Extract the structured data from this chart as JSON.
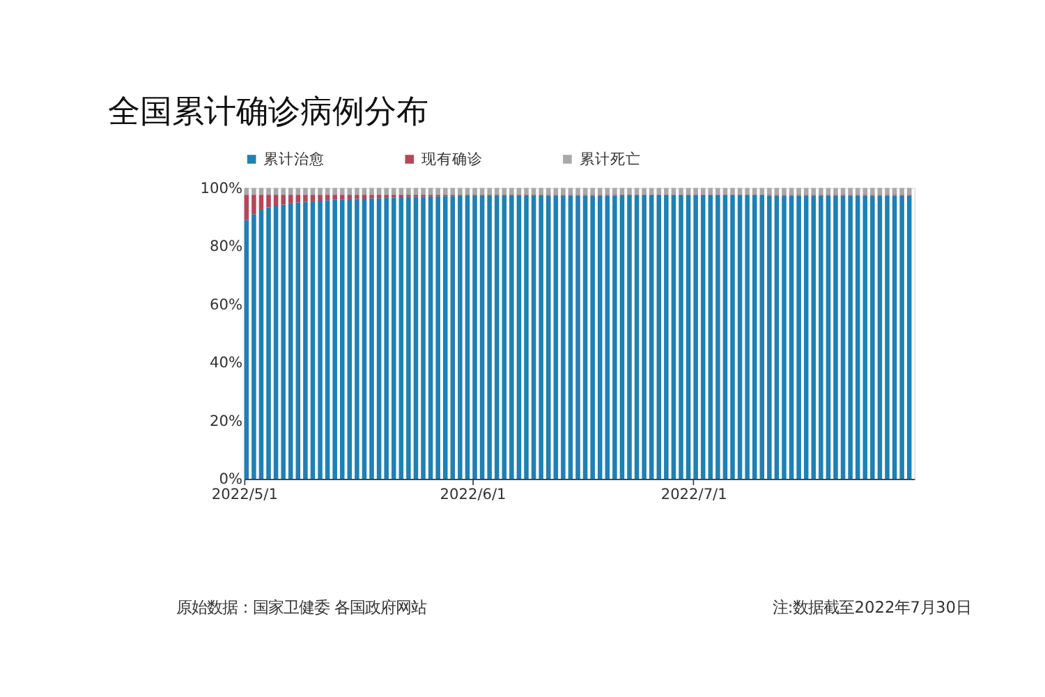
{
  "chart_data": {
    "type": "bar",
    "stacked": true,
    "title": "全国累计确诊病例分布",
    "x": [
      "2022-05-01",
      "2022-05-02",
      "2022-05-03",
      "2022-05-04",
      "2022-05-05",
      "2022-05-06",
      "2022-05-07",
      "2022-05-08",
      "2022-05-09",
      "2022-05-10",
      "2022-05-11",
      "2022-05-12",
      "2022-05-13",
      "2022-05-14",
      "2022-05-15",
      "2022-05-16",
      "2022-05-17",
      "2022-05-18",
      "2022-05-19",
      "2022-05-20",
      "2022-05-21",
      "2022-05-22",
      "2022-05-23",
      "2022-05-24",
      "2022-05-25",
      "2022-05-26",
      "2022-05-27",
      "2022-05-28",
      "2022-05-29",
      "2022-05-30",
      "2022-05-31",
      "2022-06-01",
      "2022-06-02",
      "2022-06-03",
      "2022-06-04",
      "2022-06-05",
      "2022-06-06",
      "2022-06-07",
      "2022-06-08",
      "2022-06-09",
      "2022-06-10",
      "2022-06-11",
      "2022-06-12",
      "2022-06-13",
      "2022-06-14",
      "2022-06-15",
      "2022-06-16",
      "2022-06-17",
      "2022-06-18",
      "2022-06-19",
      "2022-06-20",
      "2022-06-21",
      "2022-06-22",
      "2022-06-23",
      "2022-06-24",
      "2022-06-25",
      "2022-06-26",
      "2022-06-27",
      "2022-06-28",
      "2022-06-29",
      "2022-06-30",
      "2022-07-01",
      "2022-07-02",
      "2022-07-03",
      "2022-07-04",
      "2022-07-05",
      "2022-07-06",
      "2022-07-07",
      "2022-07-08",
      "2022-07-09",
      "2022-07-10",
      "2022-07-11",
      "2022-07-12",
      "2022-07-13",
      "2022-07-14",
      "2022-07-15",
      "2022-07-16",
      "2022-07-17",
      "2022-07-18",
      "2022-07-19",
      "2022-07-20",
      "2022-07-21",
      "2022-07-22",
      "2022-07-23",
      "2022-07-24",
      "2022-07-25",
      "2022-07-26",
      "2022-07-27",
      "2022-07-28",
      "2022-07-29",
      "2022-07-30"
    ],
    "series": [
      {
        "name": "累计治愈",
        "color": "#1f80b4",
        "values": [
          89.0,
          91.0,
          92.5,
          93.3,
          93.9,
          94.3,
          94.7,
          95.0,
          95.2,
          95.4,
          95.6,
          95.8,
          95.9,
          96.0,
          96.1,
          96.2,
          96.3,
          96.4,
          96.5,
          96.6,
          96.7,
          96.8,
          96.9,
          97.0,
          97.0,
          97.1,
          97.1,
          97.2,
          97.2,
          97.3,
          97.3,
          97.3,
          97.3,
          97.3,
          97.3,
          97.3,
          97.3,
          97.3,
          97.3,
          97.3,
          97.3,
          97.4,
          97.4,
          97.4,
          97.4,
          97.4,
          97.4,
          97.4,
          97.4,
          97.4,
          97.4,
          97.5,
          97.5,
          97.5,
          97.5,
          97.5,
          97.5,
          97.5,
          97.5,
          97.5,
          97.5,
          97.5,
          97.5,
          97.5,
          97.5,
          97.5,
          97.5,
          97.5,
          97.5,
          97.5,
          97.5,
          97.4,
          97.4,
          97.4,
          97.4,
          97.4,
          97.4,
          97.4,
          97.4,
          97.4,
          97.4,
          97.4,
          97.4,
          97.4,
          97.4,
          97.4,
          97.4,
          97.4,
          97.4,
          97.4,
          97.4
        ]
      },
      {
        "name": "现有确诊",
        "color": "#b4475a",
        "values": [
          8.7,
          6.7,
          5.2,
          4.4,
          3.8,
          3.4,
          3.0,
          2.7,
          2.5,
          2.3,
          2.1,
          1.9,
          1.8,
          1.7,
          1.6,
          1.5,
          1.4,
          1.3,
          1.2,
          1.1,
          1.0,
          0.9,
          0.8,
          0.7,
          0.7,
          0.6,
          0.6,
          0.5,
          0.5,
          0.4,
          0.4,
          0.4,
          0.4,
          0.4,
          0.4,
          0.4,
          0.4,
          0.4,
          0.4,
          0.4,
          0.4,
          0.3,
          0.3,
          0.3,
          0.3,
          0.3,
          0.3,
          0.3,
          0.3,
          0.3,
          0.3,
          0.2,
          0.2,
          0.2,
          0.2,
          0.2,
          0.2,
          0.2,
          0.2,
          0.2,
          0.2,
          0.2,
          0.2,
          0.2,
          0.2,
          0.2,
          0.2,
          0.2,
          0.2,
          0.2,
          0.2,
          0.3,
          0.3,
          0.3,
          0.3,
          0.3,
          0.3,
          0.3,
          0.3,
          0.3,
          0.3,
          0.3,
          0.3,
          0.3,
          0.3,
          0.3,
          0.3,
          0.3,
          0.3,
          0.3,
          0.3
        ]
      },
      {
        "name": "累计死亡",
        "color": "#a8a8a8",
        "values": [
          2.3,
          2.3,
          2.3,
          2.3,
          2.3,
          2.3,
          2.3,
          2.3,
          2.3,
          2.3,
          2.3,
          2.3,
          2.3,
          2.3,
          2.3,
          2.3,
          2.3,
          2.3,
          2.3,
          2.3,
          2.3,
          2.3,
          2.3,
          2.3,
          2.3,
          2.3,
          2.3,
          2.3,
          2.3,
          2.3,
          2.3,
          2.3,
          2.3,
          2.3,
          2.3,
          2.3,
          2.3,
          2.3,
          2.3,
          2.3,
          2.3,
          2.3,
          2.3,
          2.3,
          2.3,
          2.3,
          2.3,
          2.3,
          2.3,
          2.3,
          2.3,
          2.3,
          2.3,
          2.3,
          2.3,
          2.3,
          2.3,
          2.3,
          2.3,
          2.3,
          2.3,
          2.3,
          2.3,
          2.3,
          2.3,
          2.3,
          2.3,
          2.3,
          2.3,
          2.3,
          2.3,
          2.3,
          2.3,
          2.3,
          2.3,
          2.3,
          2.3,
          2.3,
          2.3,
          2.3,
          2.3,
          2.3,
          2.3,
          2.3,
          2.3,
          2.3,
          2.3,
          2.3,
          2.3,
          2.3,
          2.3
        ]
      }
    ],
    "xlim": [
      "2022-05-01",
      "2022-07-31"
    ],
    "xticks": [
      {
        "value": "2022-05-01",
        "label": "2022/5/1"
      },
      {
        "value": "2022-06-01",
        "label": "2022/6/1"
      },
      {
        "value": "2022-07-01",
        "label": "2022/7/1"
      }
    ],
    "ylim": [
      0,
      100
    ],
    "yticks": [
      {
        "value": 0,
        "label": "0%"
      },
      {
        "value": 20,
        "label": "20%"
      },
      {
        "value": 40,
        "label": "40%"
      },
      {
        "value": 60,
        "label": "60%"
      },
      {
        "value": 80,
        "label": "80%"
      },
      {
        "value": 100,
        "label": "100%"
      }
    ],
    "legend": "top",
    "grid": false,
    "annotations": [
      "原始数据：国家卫健委 各国政府网站",
      "注:数据截至2022年7月30日"
    ]
  }
}
